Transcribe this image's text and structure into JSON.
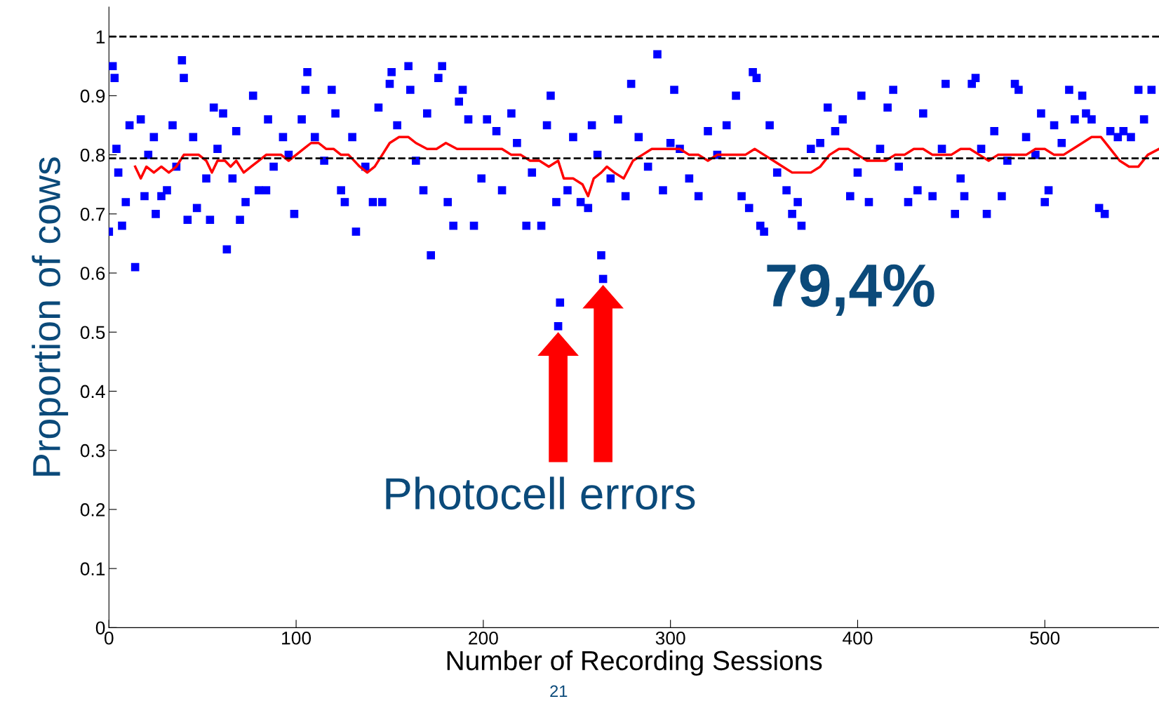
{
  "chart_data": {
    "type": "scatter",
    "xlabel": "Number of Recording Sessions",
    "ylabel": "Proportion of cows",
    "xlim": [
      0,
      561
    ],
    "xticks": [
      0,
      100,
      200,
      300,
      400,
      500
    ],
    "ylim": [
      0,
      1.05
    ],
    "yticks": [
      0,
      0.1,
      0.2,
      0.3,
      0.4,
      0.5,
      0.6,
      0.7,
      0.8,
      0.9,
      1
    ],
    "grid": false,
    "series": [
      {
        "color": "#0000ff",
        "marker": "square",
        "x": [
          0,
          2,
          3,
          4,
          5,
          7,
          9,
          11,
          14,
          17,
          19,
          21,
          24,
          25,
          28,
          31,
          34,
          36,
          39,
          40,
          42,
          45,
          47,
          52,
          54,
          56,
          58,
          61,
          63,
          66,
          68,
          70,
          73,
          77,
          80,
          84,
          85,
          88,
          93,
          96,
          99,
          103,
          105,
          106,
          110,
          115,
          119,
          121,
          124,
          126,
          130,
          132,
          137,
          141,
          144,
          146,
          150,
          151,
          154,
          160,
          161,
          164,
          168,
          170,
          172,
          176,
          178,
          181,
          184,
          187,
          189,
          192,
          195,
          199,
          202,
          207,
          210,
          215,
          218,
          223,
          226,
          231,
          234,
          236,
          239,
          240,
          241,
          245,
          248,
          252,
          256,
          258,
          261,
          263,
          264,
          268,
          272,
          276,
          279,
          283,
          288,
          293,
          296,
          300,
          302,
          305,
          310,
          315,
          320,
          325,
          330,
          335,
          338,
          342,
          344,
          346,
          348,
          350,
          353,
          357,
          362,
          365,
          368,
          370,
          375,
          380,
          384,
          388,
          392,
          396,
          400,
          402,
          406,
          412,
          416,
          419,
          422,
          427,
          432,
          435,
          440,
          445,
          447,
          452,
          455,
          457,
          461,
          463,
          466,
          469,
          473,
          477,
          480,
          484,
          486,
          490,
          495,
          498,
          500,
          502,
          505,
          509,
          513,
          516,
          520,
          522,
          525,
          529,
          532,
          535,
          539,
          542,
          546,
          550,
          553,
          557
        ],
        "values": [
          0.67,
          0.95,
          0.93,
          0.81,
          0.77,
          0.68,
          0.72,
          0.85,
          0.61,
          0.86,
          0.73,
          0.8,
          0.83,
          0.7,
          0.73,
          0.74,
          0.85,
          0.78,
          0.96,
          0.93,
          0.69,
          0.83,
          0.71,
          0.76,
          0.69,
          0.88,
          0.81,
          0.87,
          0.64,
          0.76,
          0.84,
          0.69,
          0.72,
          0.9,
          0.74,
          0.74,
          0.86,
          0.78,
          0.83,
          0.8,
          0.7,
          0.86,
          0.91,
          0.94,
          0.83,
          0.79,
          0.91,
          0.87,
          0.74,
          0.72,
          0.83,
          0.67,
          0.78,
          0.72,
          0.88,
          0.72,
          0.92,
          0.94,
          0.85,
          0.95,
          0.91,
          0.79,
          0.74,
          0.87,
          0.63,
          0.93,
          0.95,
          0.72,
          0.68,
          0.89,
          0.91,
          0.86,
          0.68,
          0.76,
          0.86,
          0.84,
          0.74,
          0.87,
          0.82,
          0.68,
          0.77,
          0.68,
          0.85,
          0.9,
          0.72,
          0.51,
          0.55,
          0.74,
          0.83,
          0.72,
          0.71,
          0.85,
          0.8,
          0.63,
          0.59,
          0.76,
          0.86,
          0.73,
          0.92,
          0.83,
          0.78,
          0.97,
          0.74,
          0.82,
          0.91,
          0.81,
          0.76,
          0.73,
          0.84,
          0.8,
          0.85,
          0.9,
          0.73,
          0.71,
          0.94,
          0.93,
          0.68,
          0.67,
          0.85,
          0.77,
          0.74,
          0.7,
          0.72,
          0.68,
          0.81,
          0.82,
          0.88,
          0.84,
          0.86,
          0.73,
          0.77,
          0.9,
          0.72,
          0.81,
          0.88,
          0.91,
          0.78,
          0.72,
          0.74,
          0.87,
          0.73,
          0.81,
          0.92,
          0.7,
          0.76,
          0.73,
          0.92,
          0.93,
          0.81,
          0.7,
          0.84,
          0.73,
          0.79,
          0.92,
          0.91,
          0.83,
          0.8,
          0.87,
          0.72,
          0.74,
          0.85,
          0.82,
          0.91,
          0.86,
          0.9,
          0.87,
          0.86,
          0.71,
          0.7,
          0.84,
          0.83,
          0.84,
          0.83,
          0.91,
          0.86,
          0.91
        ]
      },
      {
        "type": "line",
        "color": "#ff0000",
        "line_style": "solid",
        "marker": "none",
        "x": [
          14,
          17,
          20,
          24,
          28,
          32,
          36,
          40,
          44,
          48,
          52,
          55,
          58,
          62,
          65,
          68,
          72,
          76,
          80,
          84,
          88,
          92,
          96,
          100,
          104,
          108,
          112,
          116,
          120,
          124,
          128,
          134,
          138,
          142,
          146,
          150,
          155,
          160,
          164,
          170,
          175,
          180,
          186,
          190,
          195,
          200,
          205,
          210,
          215,
          220,
          225,
          230,
          235,
          240,
          243,
          248,
          253,
          256,
          259,
          263,
          266,
          270,
          275,
          280,
          285,
          290,
          295,
          300,
          305,
          310,
          315,
          320,
          325,
          330,
          335,
          340,
          345,
          350,
          355,
          360,
          365,
          370,
          375,
          380,
          385,
          390,
          395,
          400,
          405,
          410,
          415,
          420,
          425,
          430,
          435,
          440,
          445,
          450,
          455,
          460,
          465,
          470,
          475,
          480,
          485,
          490,
          495,
          500,
          505,
          510,
          515,
          520,
          525,
          530,
          535,
          540,
          545,
          550,
          555,
          561
        ],
        "values": [
          0.78,
          0.76,
          0.78,
          0.77,
          0.78,
          0.77,
          0.78,
          0.8,
          0.8,
          0.8,
          0.79,
          0.77,
          0.79,
          0.79,
          0.78,
          0.79,
          0.77,
          0.78,
          0.79,
          0.8,
          0.8,
          0.8,
          0.79,
          0.8,
          0.81,
          0.82,
          0.82,
          0.81,
          0.81,
          0.8,
          0.8,
          0.78,
          0.77,
          0.78,
          0.8,
          0.82,
          0.83,
          0.83,
          0.82,
          0.81,
          0.81,
          0.82,
          0.81,
          0.81,
          0.81,
          0.81,
          0.81,
          0.81,
          0.8,
          0.8,
          0.79,
          0.79,
          0.78,
          0.79,
          0.76,
          0.76,
          0.75,
          0.73,
          0.76,
          0.77,
          0.78,
          0.77,
          0.76,
          0.79,
          0.8,
          0.81,
          0.81,
          0.81,
          0.81,
          0.8,
          0.8,
          0.79,
          0.8,
          0.8,
          0.8,
          0.8,
          0.81,
          0.8,
          0.79,
          0.78,
          0.77,
          0.77,
          0.77,
          0.78,
          0.8,
          0.81,
          0.81,
          0.8,
          0.79,
          0.79,
          0.79,
          0.8,
          0.8,
          0.81,
          0.81,
          0.8,
          0.8,
          0.8,
          0.81,
          0.81,
          0.8,
          0.79,
          0.8,
          0.8,
          0.8,
          0.8,
          0.81,
          0.81,
          0.8,
          0.8,
          0.81,
          0.82,
          0.83,
          0.83,
          0.81,
          0.79,
          0.78,
          0.78,
          0.8,
          0.81
        ]
      }
    ],
    "ref_lines": [
      {
        "axis": "y",
        "value": 1,
        "color": "#000000",
        "line_style": "dashed"
      },
      {
        "axis": "y",
        "value": 0.794,
        "label": "79,4%",
        "color": "#000000",
        "line_style": "dashed"
      }
    ],
    "annotations": [
      "Photocell errors",
      "21"
    ]
  }
}
